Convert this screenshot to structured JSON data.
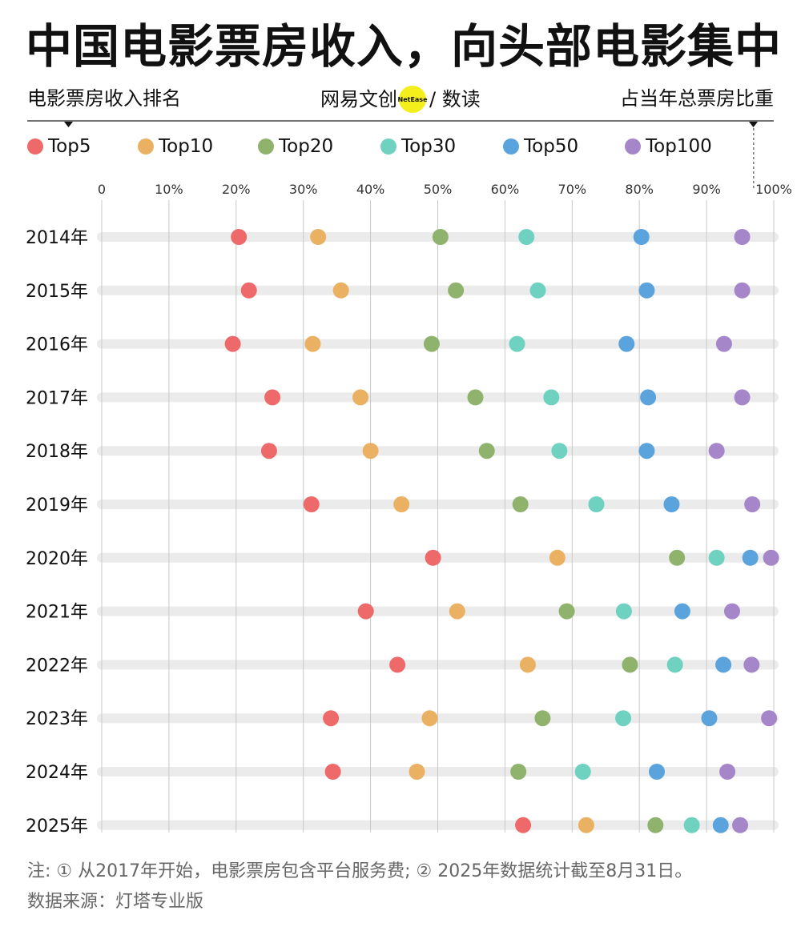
{
  "title": "中国电影票房收入，向头部电影集中",
  "subtitle_left": "电影票房收入排名",
  "subtitle_right": "占当年总票房比重",
  "brand": {
    "name": "网易文创",
    "badge": "NetEase",
    "section": "/ 数读"
  },
  "footnote": {
    "line1": "注: ① 从2017年开始，电影票房包含平台服务费; ② 2025年数据统计截至8月31日。",
    "line2": "数据来源：灯塔专业版"
  },
  "colors": {
    "Top5": "#ee6a6a",
    "Top10": "#eab162",
    "Top20": "#8fb36c",
    "Top30": "#6fd1bf",
    "Top50": "#5aa3dd",
    "Top100": "#a586c9",
    "track": "#ebebeb",
    "grid": "#c8c8c8"
  },
  "chart_data": {
    "type": "scatter",
    "xlim": [
      0,
      100
    ],
    "x_ticks": [
      "0",
      "10%",
      "20%",
      "30%",
      "40%",
      "50%",
      "60%",
      "70%",
      "80%",
      "90%",
      "100%"
    ],
    "categories": [
      "2014年",
      "2015年",
      "2016年",
      "2017年",
      "2018年",
      "2019年",
      "2020年",
      "2021年",
      "2022年",
      "2023年",
      "2024年",
      "2025年"
    ],
    "series": [
      {
        "name": "Top5",
        "values": [
          20.4,
          21.9,
          19.5,
          25.4,
          24.9,
          31.2,
          49.3,
          39.3,
          44.0,
          34.1,
          34.4,
          62.7
        ]
      },
      {
        "name": "Top10",
        "values": [
          32.2,
          35.6,
          31.4,
          38.5,
          40.0,
          44.6,
          67.8,
          52.9,
          63.4,
          48.8,
          46.9,
          72.1
        ]
      },
      {
        "name": "Top20",
        "values": [
          50.4,
          52.7,
          49.1,
          55.6,
          57.3,
          62.3,
          85.6,
          69.2,
          78.6,
          65.6,
          62.0,
          82.4
        ]
      },
      {
        "name": "Top30",
        "values": [
          63.2,
          64.9,
          61.8,
          66.9,
          68.1,
          73.6,
          91.5,
          77.7,
          85.3,
          77.6,
          71.6,
          87.8
        ]
      },
      {
        "name": "Top50",
        "values": [
          80.3,
          81.1,
          78.1,
          81.3,
          81.1,
          84.8,
          96.5,
          86.4,
          92.5,
          90.4,
          82.6,
          92.1
        ]
      },
      {
        "name": "Top100",
        "values": [
          95.3,
          95.3,
          92.6,
          95.3,
          91.5,
          96.8,
          99.6,
          93.8,
          96.7,
          99.3,
          93.1,
          95.0
        ]
      }
    ]
  }
}
